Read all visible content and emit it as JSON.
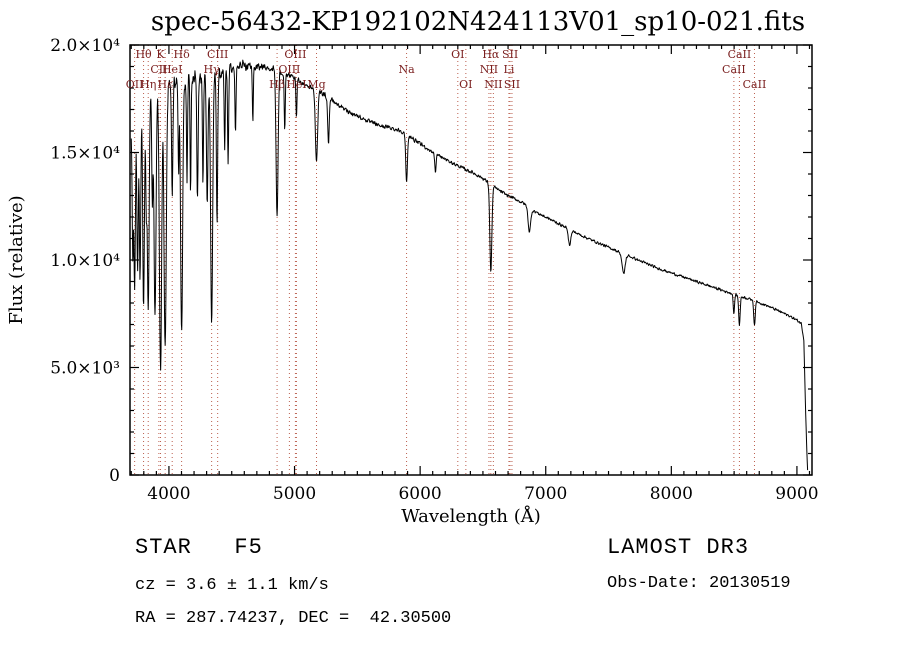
{
  "chart_data": {
    "type": "line",
    "title": "spec-56432-KP192102N424113V01_sp10-021.fits",
    "xlabel": "Wavelength (Å)",
    "ylabel": "Flux (relative)",
    "xlim": [
      3690,
      9120
    ],
    "ylim": [
      0,
      20000
    ],
    "xticks": [
      4000,
      5000,
      6000,
      7000,
      8000,
      9000
    ],
    "xtick_labels": [
      "4000",
      "5000",
      "6000",
      "7000",
      "8000",
      "9000"
    ],
    "x_minor_step": 100,
    "yticks": [
      0,
      5000,
      10000,
      15000,
      20000
    ],
    "ytick_labels": [
      "0",
      "5.0×10³",
      "1.0×10⁴",
      "1.5×10⁴",
      "2.0×10⁴"
    ],
    "y_minor_step": 1000,
    "grid": false,
    "legend": "none",
    "line_color": "#000000",
    "marker_line_color": "#bb5f4e",
    "marker_label_color": "#7a1f1f",
    "series": [
      {
        "name": "flux",
        "range": [
          3700,
          9085
        ],
        "step": 3,
        "continuum": [
          [
            3700,
            16200
          ],
          [
            3725,
            17200
          ],
          [
            3760,
            17600
          ],
          [
            3800,
            17850
          ],
          [
            3850,
            18000
          ],
          [
            3900,
            18100
          ],
          [
            3960,
            18200
          ],
          [
            4020,
            18280
          ],
          [
            4080,
            18330
          ],
          [
            4150,
            18400
          ],
          [
            4220,
            18470
          ],
          [
            4300,
            18550
          ],
          [
            4380,
            18650
          ],
          [
            4450,
            18820
          ],
          [
            4520,
            18960
          ],
          [
            4600,
            19050
          ],
          [
            4680,
            19020
          ],
          [
            4760,
            18950
          ],
          [
            4840,
            18880
          ],
          [
            4900,
            18720
          ],
          [
            4960,
            18540
          ],
          [
            5020,
            18380
          ],
          [
            5080,
            18180
          ],
          [
            5150,
            17960
          ],
          [
            5220,
            17760
          ],
          [
            5300,
            17420
          ],
          [
            5380,
            17080
          ],
          [
            5450,
            16850
          ],
          [
            5520,
            16650
          ],
          [
            5600,
            16420
          ],
          [
            5680,
            16250
          ],
          [
            5760,
            16150
          ],
          [
            5840,
            16020
          ],
          [
            5900,
            15850
          ],
          [
            5960,
            15550
          ],
          [
            6020,
            15330
          ],
          [
            6100,
            15010
          ],
          [
            6180,
            14750
          ],
          [
            6260,
            14500
          ],
          [
            6340,
            14270
          ],
          [
            6420,
            14060
          ],
          [
            6500,
            13800
          ],
          [
            6580,
            13430
          ],
          [
            6660,
            13120
          ],
          [
            6740,
            12880
          ],
          [
            6820,
            12650
          ],
          [
            6900,
            12300
          ],
          [
            6980,
            12050
          ],
          [
            7060,
            11820
          ],
          [
            7160,
            11510
          ],
          [
            7260,
            11210
          ],
          [
            7360,
            10940
          ],
          [
            7460,
            10690
          ],
          [
            7560,
            10440
          ],
          [
            7660,
            10190
          ],
          [
            7760,
            9940
          ],
          [
            7860,
            9690
          ],
          [
            7960,
            9480
          ],
          [
            8060,
            9280
          ],
          [
            8160,
            9080
          ],
          [
            8260,
            8880
          ],
          [
            8360,
            8680
          ],
          [
            8460,
            8480
          ],
          [
            8560,
            8300
          ],
          [
            8660,
            8120
          ],
          [
            8760,
            7880
          ],
          [
            8860,
            7620
          ],
          [
            8940,
            7400
          ],
          [
            9000,
            7200
          ],
          [
            9035,
            7050
          ],
          [
            9055,
            6300
          ],
          [
            9070,
            2800
          ],
          [
            9080,
            900
          ],
          [
            9085,
            250
          ]
        ],
        "absorption_lines": [
          [
            3712,
            0.4,
            5
          ],
          [
            3727,
            0.5,
            6
          ],
          [
            3750,
            0.45,
            6
          ],
          [
            3770,
            0.48,
            6
          ],
          [
            3798,
            0.55,
            7
          ],
          [
            3820,
            0.3,
            5
          ],
          [
            3835,
            0.58,
            7
          ],
          [
            3868,
            0.28,
            5
          ],
          [
            3889,
            0.6,
            8
          ],
          [
            3933,
            0.74,
            9
          ],
          [
            3970,
            0.68,
            9
          ],
          [
            4026,
            0.3,
            5
          ],
          [
            4077,
            0.24,
            4
          ],
          [
            4101,
            0.64,
            8
          ],
          [
            4144,
            0.26,
            4
          ],
          [
            4172,
            0.28,
            4
          ],
          [
            4227,
            0.32,
            5
          ],
          [
            4271,
            0.28,
            4
          ],
          [
            4305,
            0.32,
            6
          ],
          [
            4340,
            0.62,
            8
          ],
          [
            4383,
            0.36,
            5
          ],
          [
            4444,
            0.2,
            4
          ],
          [
            4471,
            0.24,
            4
          ],
          [
            4530,
            0.16,
            4
          ],
          [
            4668,
            0.14,
            4
          ],
          [
            4861,
            0.36,
            8
          ],
          [
            4922,
            0.14,
            4
          ],
          [
            5015,
            0.1,
            4
          ],
          [
            5175,
            0.18,
            9
          ],
          [
            5270,
            0.12,
            6
          ],
          [
            5892,
            0.14,
            7
          ],
          [
            6122,
            0.06,
            5
          ],
          [
            6563,
            0.3,
            8
          ],
          [
            6870,
            0.09,
            10
          ],
          [
            7190,
            0.06,
            10
          ],
          [
            7620,
            0.09,
            12
          ],
          [
            8498,
            0.11,
            5
          ],
          [
            8542,
            0.16,
            6
          ],
          [
            8662,
            0.14,
            6
          ]
        ],
        "noise_level": [
          [
            3700,
            950
          ],
          [
            4200,
            800
          ],
          [
            4500,
            600
          ],
          [
            4800,
            380
          ],
          [
            5200,
            280
          ],
          [
            5700,
            230
          ],
          [
            6200,
            200
          ],
          [
            7000,
            170
          ],
          [
            8000,
            150
          ],
          [
            9085,
            140
          ]
        ]
      }
    ],
    "spectral_markers": [
      {
        "wavelength": 3727,
        "label": "OII",
        "row": 2
      },
      {
        "wavelength": 3798,
        "label": "Hθ",
        "row": 0
      },
      {
        "wavelength": 3835,
        "label": "Hη",
        "row": 2
      },
      {
        "wavelength": 3920,
        "label": "CII",
        "row": 1
      },
      {
        "wavelength": 3933,
        "label": "K",
        "row": 0
      },
      {
        "wavelength": 3970,
        "label": "Hε",
        "row": 2
      },
      {
        "wavelength": 4026,
        "label": "HeI",
        "row": 1
      },
      {
        "wavelength": 4101,
        "label": "Hδ",
        "row": 0
      },
      {
        "wavelength": 4340,
        "label": "Hγ",
        "row": 1
      },
      {
        "wavelength": 4388,
        "label": "CIII",
        "row": 0
      },
      {
        "wavelength": 4861,
        "label": "Hβ",
        "row": 2
      },
      {
        "wavelength": 4959,
        "label": "OIII",
        "row": 1
      },
      {
        "wavelength": 5007,
        "label": "OIII",
        "row": 0
      },
      {
        "wavelength": 5015,
        "label": "HeI",
        "row": 2
      },
      {
        "wavelength": 5175,
        "label": "Mg",
        "row": 2
      },
      {
        "wavelength": 5892,
        "label": "Na",
        "row": 1
      },
      {
        "wavelength": 6300,
        "label": "OI",
        "row": 0
      },
      {
        "wavelength": 6364,
        "label": "OI",
        "row": 2
      },
      {
        "wavelength": 6548,
        "label": "NII",
        "row": 1
      },
      {
        "wavelength": 6563,
        "label": "Hα",
        "row": 0
      },
      {
        "wavelength": 6583,
        "label": "NII",
        "row": 2
      },
      {
        "wavelength": 6707,
        "label": "Li",
        "row": 1
      },
      {
        "wavelength": 6716,
        "label": "SII",
        "row": 0
      },
      {
        "wavelength": 6731,
        "label": "SII",
        "row": 2
      },
      {
        "wavelength": 8498,
        "label": "CaII",
        "row": 1
      },
      {
        "wavelength": 8542,
        "label": "CaII",
        "row": 0
      },
      {
        "wavelength": 8662,
        "label": "CaII",
        "row": 2
      }
    ]
  },
  "footer": {
    "class_line": "STAR   F5",
    "survey": "LAMOST DR3",
    "cz_line": "cz = 3.6 ± 1.1 km/s",
    "obs_date": "Obs-Date: 20130519",
    "radec_line": "RA = 287.74237, DEC =  42.30500"
  }
}
